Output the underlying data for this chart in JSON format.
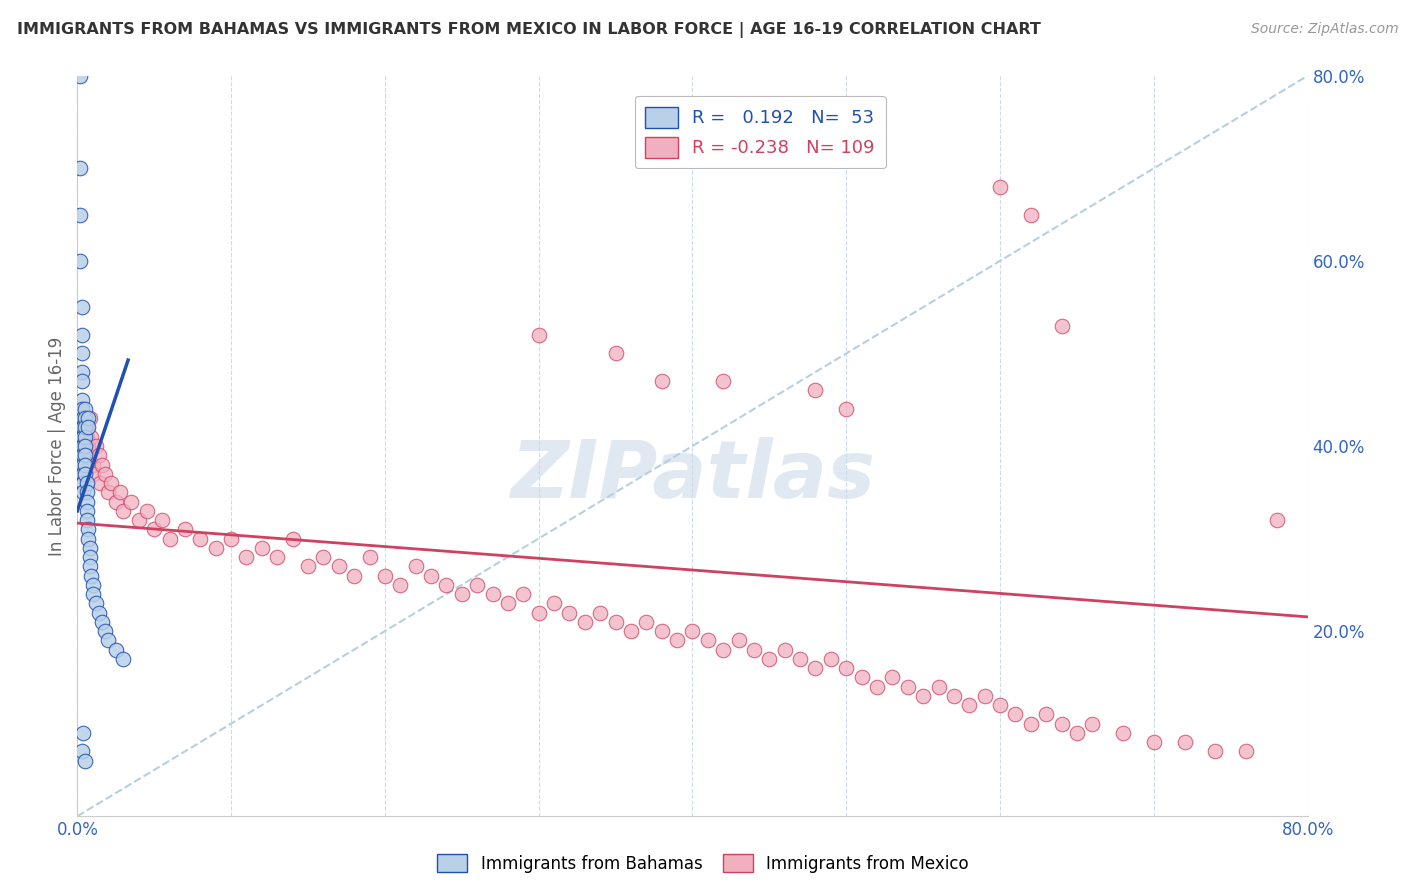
{
  "title": "IMMIGRANTS FROM BAHAMAS VS IMMIGRANTS FROM MEXICO IN LABOR FORCE | AGE 16-19 CORRELATION CHART",
  "source": "Source: ZipAtlas.com",
  "ylabel": "In Labor Force | Age 16-19",
  "x_min": 0.0,
  "x_max": 0.8,
  "y_min": 0.0,
  "y_max": 0.8,
  "r_bahamas": 0.192,
  "n_bahamas": 53,
  "r_mexico": -0.238,
  "n_mexico": 109,
  "bahamas_color": "#b8d0e8",
  "mexico_color": "#f0b0c0",
  "trend_bahamas_color": "#2050b0",
  "trend_mexico_color": "#d04060",
  "diagonal_color": "#b8cfe0",
  "watermark": "ZIPatlas",
  "legend_entries": [
    "Immigrants from Bahamas",
    "Immigrants from Mexico"
  ],
  "bahamas_x": [
    0.002,
    0.002,
    0.002,
    0.002,
    0.003,
    0.003,
    0.003,
    0.003,
    0.003,
    0.003,
    0.003,
    0.004,
    0.004,
    0.004,
    0.004,
    0.004,
    0.004,
    0.004,
    0.004,
    0.004,
    0.005,
    0.005,
    0.005,
    0.005,
    0.005,
    0.005,
    0.005,
    0.005,
    0.006,
    0.006,
    0.006,
    0.006,
    0.006,
    0.007,
    0.007,
    0.007,
    0.007,
    0.008,
    0.008,
    0.008,
    0.009,
    0.01,
    0.01,
    0.012,
    0.014,
    0.016,
    0.018,
    0.02,
    0.025,
    0.03,
    0.004,
    0.003,
    0.005
  ],
  "bahamas_y": [
    0.8,
    0.7,
    0.65,
    0.6,
    0.55,
    0.52,
    0.5,
    0.48,
    0.47,
    0.45,
    0.44,
    0.43,
    0.42,
    0.41,
    0.4,
    0.39,
    0.38,
    0.37,
    0.36,
    0.35,
    0.44,
    0.43,
    0.42,
    0.41,
    0.4,
    0.39,
    0.38,
    0.37,
    0.36,
    0.35,
    0.34,
    0.33,
    0.32,
    0.43,
    0.42,
    0.31,
    0.3,
    0.29,
    0.28,
    0.27,
    0.26,
    0.25,
    0.24,
    0.23,
    0.22,
    0.21,
    0.2,
    0.19,
    0.18,
    0.17,
    0.09,
    0.07,
    0.06
  ],
  "mexico_x": [
    0.002,
    0.003,
    0.003,
    0.004,
    0.004,
    0.005,
    0.005,
    0.005,
    0.006,
    0.006,
    0.006,
    0.007,
    0.007,
    0.008,
    0.008,
    0.009,
    0.01,
    0.01,
    0.012,
    0.014,
    0.015,
    0.016,
    0.018,
    0.02,
    0.022,
    0.025,
    0.028,
    0.03,
    0.035,
    0.04,
    0.045,
    0.05,
    0.055,
    0.06,
    0.07,
    0.08,
    0.09,
    0.1,
    0.11,
    0.12,
    0.13,
    0.14,
    0.15,
    0.16,
    0.17,
    0.18,
    0.19,
    0.2,
    0.21,
    0.22,
    0.23,
    0.24,
    0.25,
    0.26,
    0.27,
    0.28,
    0.29,
    0.3,
    0.31,
    0.32,
    0.33,
    0.34,
    0.35,
    0.36,
    0.37,
    0.38,
    0.39,
    0.4,
    0.41,
    0.42,
    0.43,
    0.44,
    0.45,
    0.46,
    0.47,
    0.48,
    0.49,
    0.5,
    0.51,
    0.52,
    0.53,
    0.54,
    0.55,
    0.56,
    0.57,
    0.58,
    0.59,
    0.6,
    0.61,
    0.62,
    0.63,
    0.64,
    0.65,
    0.66,
    0.68,
    0.7,
    0.72,
    0.74,
    0.76,
    0.78,
    0.6,
    0.62,
    0.64,
    0.5,
    0.48,
    0.42,
    0.38,
    0.35,
    0.3
  ],
  "mexico_y": [
    0.43,
    0.44,
    0.42,
    0.43,
    0.41,
    0.4,
    0.42,
    0.43,
    0.41,
    0.42,
    0.4,
    0.4,
    0.39,
    0.38,
    0.43,
    0.41,
    0.38,
    0.37,
    0.4,
    0.39,
    0.36,
    0.38,
    0.37,
    0.35,
    0.36,
    0.34,
    0.35,
    0.33,
    0.34,
    0.32,
    0.33,
    0.31,
    0.32,
    0.3,
    0.31,
    0.3,
    0.29,
    0.3,
    0.28,
    0.29,
    0.28,
    0.3,
    0.27,
    0.28,
    0.27,
    0.26,
    0.28,
    0.26,
    0.25,
    0.27,
    0.26,
    0.25,
    0.24,
    0.25,
    0.24,
    0.23,
    0.24,
    0.22,
    0.23,
    0.22,
    0.21,
    0.22,
    0.21,
    0.2,
    0.21,
    0.2,
    0.19,
    0.2,
    0.19,
    0.18,
    0.19,
    0.18,
    0.17,
    0.18,
    0.17,
    0.16,
    0.17,
    0.16,
    0.15,
    0.14,
    0.15,
    0.14,
    0.13,
    0.14,
    0.13,
    0.12,
    0.13,
    0.12,
    0.11,
    0.1,
    0.11,
    0.1,
    0.09,
    0.1,
    0.09,
    0.08,
    0.08,
    0.07,
    0.07,
    0.32,
    0.68,
    0.65,
    0.53,
    0.44,
    0.46,
    0.47,
    0.47,
    0.5,
    0.52
  ]
}
